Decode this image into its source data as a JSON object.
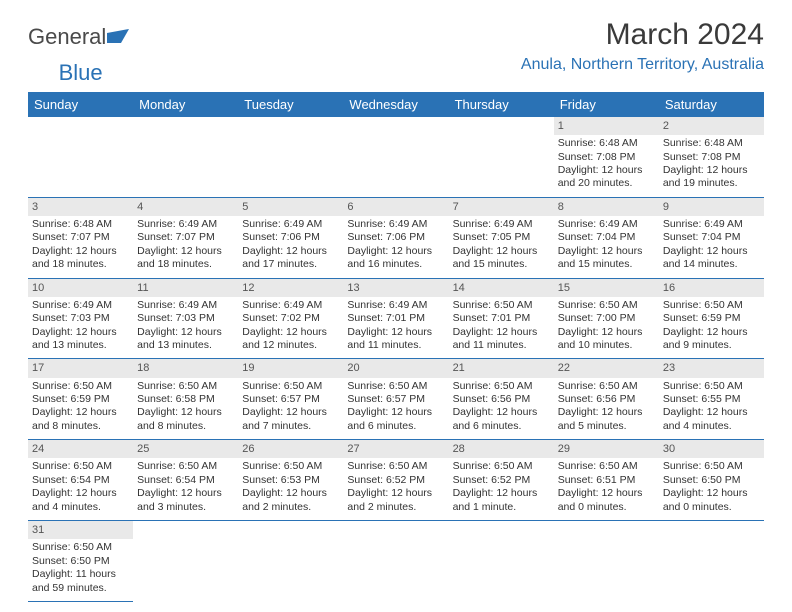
{
  "brand": {
    "part1": "General",
    "part2": "Blue"
  },
  "title": "March 2024",
  "location": "Anula, Northern Territory, Australia",
  "colors": {
    "header_bg": "#2a72b5",
    "header_text": "#ffffff",
    "daynum_bg": "#e9e9e9",
    "border": "#2a72b5",
    "title_text": "#3a3a3a",
    "location_text": "#2a72b5"
  },
  "weekdays": [
    "Sunday",
    "Monday",
    "Tuesday",
    "Wednesday",
    "Thursday",
    "Friday",
    "Saturday"
  ],
  "layout": {
    "first_weekday_index": 5,
    "days_in_month": 31
  },
  "days": {
    "1": {
      "sunrise": "Sunrise: 6:48 AM",
      "sunset": "Sunset: 7:08 PM",
      "daylight1": "Daylight: 12 hours",
      "daylight2": "and 20 minutes."
    },
    "2": {
      "sunrise": "Sunrise: 6:48 AM",
      "sunset": "Sunset: 7:08 PM",
      "daylight1": "Daylight: 12 hours",
      "daylight2": "and 19 minutes."
    },
    "3": {
      "sunrise": "Sunrise: 6:48 AM",
      "sunset": "Sunset: 7:07 PM",
      "daylight1": "Daylight: 12 hours",
      "daylight2": "and 18 minutes."
    },
    "4": {
      "sunrise": "Sunrise: 6:49 AM",
      "sunset": "Sunset: 7:07 PM",
      "daylight1": "Daylight: 12 hours",
      "daylight2": "and 18 minutes."
    },
    "5": {
      "sunrise": "Sunrise: 6:49 AM",
      "sunset": "Sunset: 7:06 PM",
      "daylight1": "Daylight: 12 hours",
      "daylight2": "and 17 minutes."
    },
    "6": {
      "sunrise": "Sunrise: 6:49 AM",
      "sunset": "Sunset: 7:06 PM",
      "daylight1": "Daylight: 12 hours",
      "daylight2": "and 16 minutes."
    },
    "7": {
      "sunrise": "Sunrise: 6:49 AM",
      "sunset": "Sunset: 7:05 PM",
      "daylight1": "Daylight: 12 hours",
      "daylight2": "and 15 minutes."
    },
    "8": {
      "sunrise": "Sunrise: 6:49 AM",
      "sunset": "Sunset: 7:04 PM",
      "daylight1": "Daylight: 12 hours",
      "daylight2": "and 15 minutes."
    },
    "9": {
      "sunrise": "Sunrise: 6:49 AM",
      "sunset": "Sunset: 7:04 PM",
      "daylight1": "Daylight: 12 hours",
      "daylight2": "and 14 minutes."
    },
    "10": {
      "sunrise": "Sunrise: 6:49 AM",
      "sunset": "Sunset: 7:03 PM",
      "daylight1": "Daylight: 12 hours",
      "daylight2": "and 13 minutes."
    },
    "11": {
      "sunrise": "Sunrise: 6:49 AM",
      "sunset": "Sunset: 7:03 PM",
      "daylight1": "Daylight: 12 hours",
      "daylight2": "and 13 minutes."
    },
    "12": {
      "sunrise": "Sunrise: 6:49 AM",
      "sunset": "Sunset: 7:02 PM",
      "daylight1": "Daylight: 12 hours",
      "daylight2": "and 12 minutes."
    },
    "13": {
      "sunrise": "Sunrise: 6:49 AM",
      "sunset": "Sunset: 7:01 PM",
      "daylight1": "Daylight: 12 hours",
      "daylight2": "and 11 minutes."
    },
    "14": {
      "sunrise": "Sunrise: 6:50 AM",
      "sunset": "Sunset: 7:01 PM",
      "daylight1": "Daylight: 12 hours",
      "daylight2": "and 11 minutes."
    },
    "15": {
      "sunrise": "Sunrise: 6:50 AM",
      "sunset": "Sunset: 7:00 PM",
      "daylight1": "Daylight: 12 hours",
      "daylight2": "and 10 minutes."
    },
    "16": {
      "sunrise": "Sunrise: 6:50 AM",
      "sunset": "Sunset: 6:59 PM",
      "daylight1": "Daylight: 12 hours",
      "daylight2": "and 9 minutes."
    },
    "17": {
      "sunrise": "Sunrise: 6:50 AM",
      "sunset": "Sunset: 6:59 PM",
      "daylight1": "Daylight: 12 hours",
      "daylight2": "and 8 minutes."
    },
    "18": {
      "sunrise": "Sunrise: 6:50 AM",
      "sunset": "Sunset: 6:58 PM",
      "daylight1": "Daylight: 12 hours",
      "daylight2": "and 8 minutes."
    },
    "19": {
      "sunrise": "Sunrise: 6:50 AM",
      "sunset": "Sunset: 6:57 PM",
      "daylight1": "Daylight: 12 hours",
      "daylight2": "and 7 minutes."
    },
    "20": {
      "sunrise": "Sunrise: 6:50 AM",
      "sunset": "Sunset: 6:57 PM",
      "daylight1": "Daylight: 12 hours",
      "daylight2": "and 6 minutes."
    },
    "21": {
      "sunrise": "Sunrise: 6:50 AM",
      "sunset": "Sunset: 6:56 PM",
      "daylight1": "Daylight: 12 hours",
      "daylight2": "and 6 minutes."
    },
    "22": {
      "sunrise": "Sunrise: 6:50 AM",
      "sunset": "Sunset: 6:56 PM",
      "daylight1": "Daylight: 12 hours",
      "daylight2": "and 5 minutes."
    },
    "23": {
      "sunrise": "Sunrise: 6:50 AM",
      "sunset": "Sunset: 6:55 PM",
      "daylight1": "Daylight: 12 hours",
      "daylight2": "and 4 minutes."
    },
    "24": {
      "sunrise": "Sunrise: 6:50 AM",
      "sunset": "Sunset: 6:54 PM",
      "daylight1": "Daylight: 12 hours",
      "daylight2": "and 4 minutes."
    },
    "25": {
      "sunrise": "Sunrise: 6:50 AM",
      "sunset": "Sunset: 6:54 PM",
      "daylight1": "Daylight: 12 hours",
      "daylight2": "and 3 minutes."
    },
    "26": {
      "sunrise": "Sunrise: 6:50 AM",
      "sunset": "Sunset: 6:53 PM",
      "daylight1": "Daylight: 12 hours",
      "daylight2": "and 2 minutes."
    },
    "27": {
      "sunrise": "Sunrise: 6:50 AM",
      "sunset": "Sunset: 6:52 PM",
      "daylight1": "Daylight: 12 hours",
      "daylight2": "and 2 minutes."
    },
    "28": {
      "sunrise": "Sunrise: 6:50 AM",
      "sunset": "Sunset: 6:52 PM",
      "daylight1": "Daylight: 12 hours",
      "daylight2": "and 1 minute."
    },
    "29": {
      "sunrise": "Sunrise: 6:50 AM",
      "sunset": "Sunset: 6:51 PM",
      "daylight1": "Daylight: 12 hours",
      "daylight2": "and 0 minutes."
    },
    "30": {
      "sunrise": "Sunrise: 6:50 AM",
      "sunset": "Sunset: 6:50 PM",
      "daylight1": "Daylight: 12 hours",
      "daylight2": "and 0 minutes."
    },
    "31": {
      "sunrise": "Sunrise: 6:50 AM",
      "sunset": "Sunset: 6:50 PM",
      "daylight1": "Daylight: 11 hours",
      "daylight2": "and 59 minutes."
    }
  }
}
